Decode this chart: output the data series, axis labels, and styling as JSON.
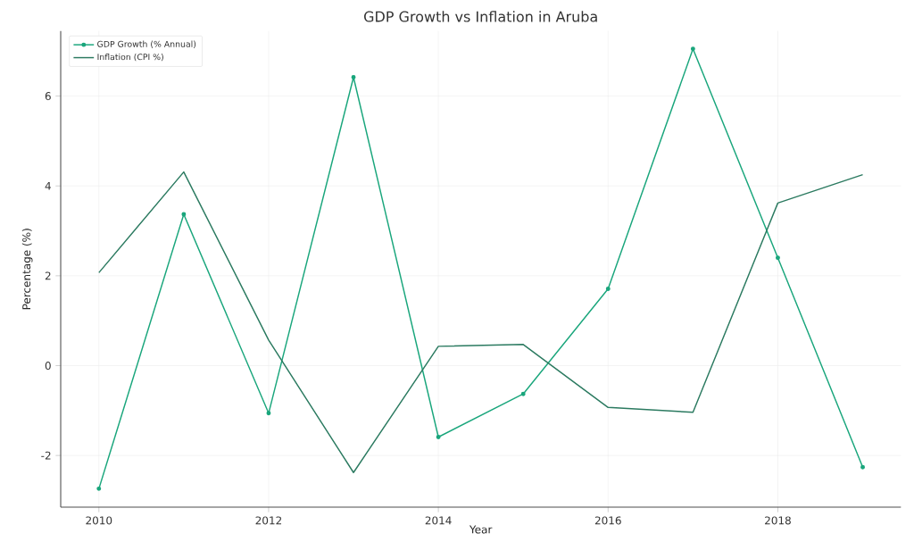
{
  "chart_data": {
    "type": "line",
    "title": "GDP Growth vs Inflation in Aruba",
    "xlabel": "Year",
    "ylabel": "Percentage (%)",
    "x": [
      2010,
      2011,
      2012,
      2013,
      2014,
      2015,
      2016,
      2017,
      2018,
      2019
    ],
    "series": [
      {
        "name": "GDP Growth (% Annual)",
        "color": "#1aa67c",
        "marker": "circle",
        "values": [
          -2.74,
          3.37,
          -1.06,
          6.42,
          -1.59,
          -0.63,
          1.71,
          7.05,
          2.4,
          -2.26
        ]
      },
      {
        "name": "Inflation (CPI %)",
        "color": "#2b7a60",
        "marker": "none",
        "values": [
          2.07,
          4.31,
          0.57,
          -2.38,
          0.43,
          0.47,
          -0.93,
          -1.04,
          3.62,
          4.25
        ]
      }
    ],
    "xlim": [
      2009.55,
      2019.45
    ],
    "ylim": [
      -3.15,
      7.45
    ],
    "xticks": [
      2010,
      2012,
      2014,
      2016,
      2018
    ],
    "yticks": [
      -2,
      0,
      2,
      4,
      6
    ],
    "grid": true,
    "legend": "top left",
    "line_style": "solid"
  }
}
